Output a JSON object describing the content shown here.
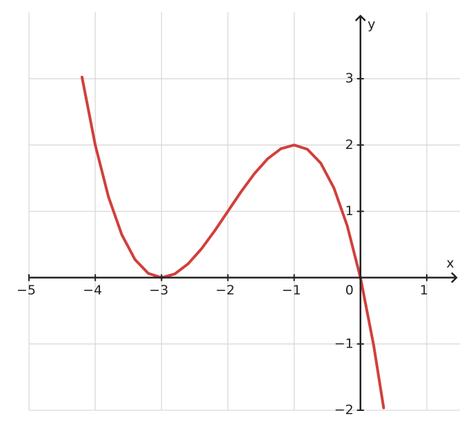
{
  "chart_data": {
    "type": "line",
    "x_label": "x",
    "y_label": "y",
    "x": [
      -4.2,
      -4.0,
      -3.8,
      -3.6,
      -3.4,
      -3.2,
      -3.0,
      -2.8,
      -2.6,
      -2.4,
      -2.2,
      -2.0,
      -1.8,
      -1.6,
      -1.4,
      -1.2,
      -1.0,
      -0.8,
      -0.6,
      -0.4,
      -0.2,
      0,
      0.2,
      0.35
    ],
    "series": [
      {
        "color": "#d0403c",
        "values": [
          3.024,
          2,
          1.216,
          0.648,
          0.272,
          0.064,
          0,
          0.056,
          0.208,
          0.432,
          0.704,
          1,
          1.296,
          1.568,
          1.792,
          1.944,
          2,
          1.936,
          1.728,
          1.352,
          0.784,
          0,
          -1.024,
          -1.964
        ]
      }
    ],
    "xlim": [
      -5,
      1.5
    ],
    "ylim": [
      -2,
      4
    ],
    "xticks": [
      {
        "value": -5,
        "label": "−5"
      },
      {
        "value": -4,
        "label": "−4"
      },
      {
        "value": -3,
        "label": "−3"
      },
      {
        "value": -2,
        "label": "−2"
      },
      {
        "value": -1,
        "label": "−1"
      },
      0,
      1
    ],
    "yticks": [
      {
        "value": -2,
        "label": "−2"
      },
      {
        "value": -1,
        "label": "−1"
      },
      1,
      2,
      3
    ],
    "grid": true
  }
}
